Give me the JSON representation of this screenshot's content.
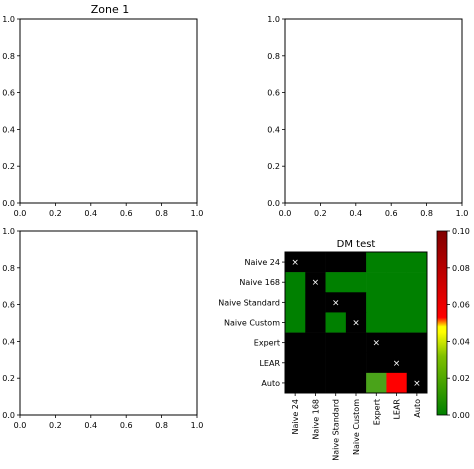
{
  "chart_data": [
    {
      "type": "line",
      "title": "Zone 1",
      "xlim": [
        0.0,
        1.0
      ],
      "ylim": [
        0.0,
        1.0
      ],
      "x_ticks": [
        "0.0",
        "0.2",
        "0.4",
        "0.6",
        "0.8",
        "1.0"
      ],
      "y_ticks": [
        "0.0",
        "0.2",
        "0.4",
        "0.6",
        "0.8",
        "1.0"
      ],
      "series": []
    },
    {
      "type": "line",
      "title": "",
      "xlim": [
        0.0,
        1.0
      ],
      "ylim": [
        0.0,
        1.0
      ],
      "x_ticks": [
        "0.0",
        "0.2",
        "0.4",
        "0.6",
        "0.8",
        "1.0"
      ],
      "y_ticks": [
        "0.0",
        "0.2",
        "0.4",
        "0.6",
        "0.8",
        "1.0"
      ],
      "series": []
    },
    {
      "type": "line",
      "title": "",
      "xlim": [
        0.0,
        1.0
      ],
      "ylim": [
        0.0,
        1.0
      ],
      "x_ticks": [
        "0.0",
        "0.2",
        "0.4",
        "0.6",
        "0.8",
        "1.0"
      ],
      "y_ticks": [
        "0.0",
        "0.2",
        "0.4",
        "0.6",
        "0.8",
        "1.0"
      ],
      "series": []
    },
    {
      "type": "heatmap",
      "title": "DM test",
      "categories": [
        "Naive 24",
        "Naive 168",
        "Naive Standard",
        "Naive Custom",
        "Expert",
        "LEAR",
        "Auto"
      ],
      "values": [
        [
          null,
          null,
          null,
          null,
          "g",
          "g",
          "g"
        ],
        [
          "g",
          null,
          "g",
          "g",
          "g",
          "g",
          "g"
        ],
        [
          "g",
          null,
          null,
          null,
          "g",
          "g",
          "g"
        ],
        [
          "g",
          null,
          "g",
          null,
          "g",
          "g",
          "g"
        ],
        [
          null,
          null,
          null,
          null,
          null,
          null,
          null
        ],
        [
          null,
          null,
          null,
          null,
          null,
          null,
          null
        ],
        [
          null,
          null,
          null,
          null,
          "g2",
          "r",
          null
        ]
      ],
      "cell_meaning": "null = black (not tested / no significance), g = p≈0.00 (green), g2 = p≈0.01 (lighter green), r = p≈0.10 (red)",
      "diagonal_marker": "×",
      "colorbar": {
        "range": [
          0.0,
          0.1
        ],
        "ticks": [
          "0.00",
          "0.02",
          "0.04",
          "0.06",
          "0.08",
          "0.10"
        ],
        "colors": {
          "low": "#008000",
          "mid_low": "#80c000",
          "mid": "#ffff00",
          "mid_high": "#ff0000",
          "high": "#800000"
        }
      }
    }
  ]
}
